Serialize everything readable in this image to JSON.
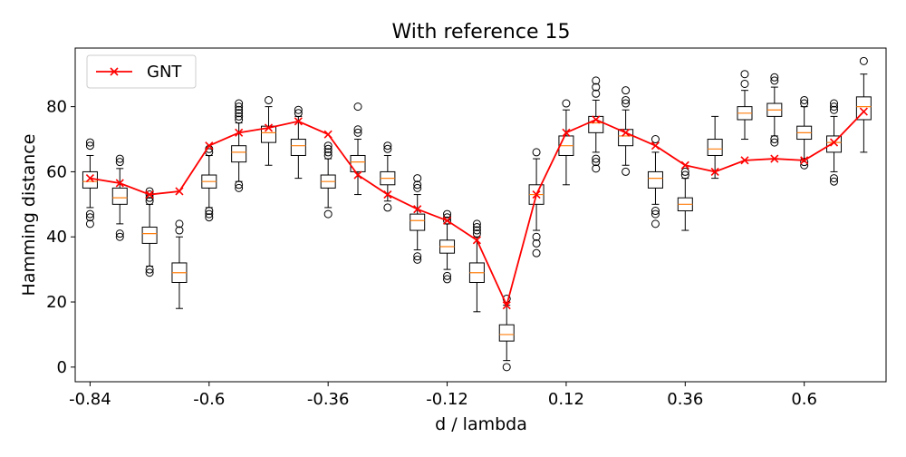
{
  "chart_data": {
    "type": "box",
    "title": "With reference 15",
    "xlabel": "d / lambda",
    "ylabel": "Hamming distance",
    "x_ticks": [
      "-0.84",
      "-0.6",
      "-0.36",
      "-0.12",
      "0.12",
      "0.36",
      "0.6"
    ],
    "x_tick_values": [
      -0.84,
      -0.6,
      -0.36,
      -0.12,
      0.12,
      0.36,
      0.6
    ],
    "y_ticks": [
      0,
      20,
      40,
      60,
      80
    ],
    "xlim": [
      -0.87,
      0.765
    ],
    "ylim": [
      -4.5,
      98
    ],
    "grid": false,
    "legend": {
      "position": "top-left",
      "entries": [
        {
          "label": "GNT",
          "color": "#ff0000",
          "marker": "x"
        }
      ]
    },
    "positions": [
      -0.84,
      -0.78,
      -0.72,
      -0.66,
      -0.6,
      -0.54,
      -0.48,
      -0.42,
      -0.36,
      -0.3,
      -0.24,
      -0.18,
      -0.12,
      -0.06,
      0.0,
      0.06,
      0.12,
      0.18,
      0.24,
      0.3,
      0.36,
      0.42,
      0.48,
      0.54,
      0.6,
      0.66,
      0.72
    ],
    "boxes": [
      {
        "min": 49,
        "q1": 55,
        "median": 57,
        "q3": 60,
        "max": 65,
        "outliers": [
          44,
          46,
          47,
          68,
          69
        ]
      },
      {
        "min": 44,
        "q1": 50,
        "median": 52,
        "q3": 55,
        "max": 61,
        "outliers": [
          40,
          41,
          63,
          64
        ]
      },
      {
        "min": 31,
        "q1": 38,
        "median": 41,
        "q3": 43,
        "max": 50,
        "outliers": [
          29,
          30,
          51,
          52,
          53,
          54
        ]
      },
      {
        "min": 18,
        "q1": 26,
        "median": 29,
        "q3": 32,
        "max": 40,
        "outliers": [
          42,
          44
        ]
      },
      {
        "min": 49,
        "q1": 55,
        "median": 57,
        "q3": 59,
        "max": 65,
        "outliers": [
          46,
          47,
          48,
          66,
          67
        ]
      },
      {
        "min": 57,
        "q1": 63,
        "median": 66,
        "q3": 68,
        "max": 75,
        "outliers": [
          55,
          56,
          76,
          77,
          78,
          79,
          80,
          81
        ]
      },
      {
        "min": 62,
        "q1": 69,
        "median": 72,
        "q3": 74,
        "max": 80,
        "outliers": [
          82
        ]
      },
      {
        "min": 58,
        "q1": 65,
        "median": 68,
        "q3": 70,
        "max": 77,
        "outliers": [
          78,
          79
        ]
      },
      {
        "min": 49,
        "q1": 55,
        "median": 57,
        "q3": 59,
        "max": 64,
        "outliers": [
          47,
          65,
          66,
          67,
          68
        ]
      },
      {
        "min": 53,
        "q1": 60,
        "median": 63,
        "q3": 65,
        "max": 70,
        "outliers": [
          72,
          73,
          80
        ]
      },
      {
        "min": 51,
        "q1": 56,
        "median": 58,
        "q3": 60,
        "max": 65,
        "outliers": [
          49,
          67,
          68
        ]
      },
      {
        "min": 36,
        "q1": 42,
        "median": 45,
        "q3": 47,
        "max": 53,
        "outliers": [
          33,
          34,
          55,
          56,
          58
        ]
      },
      {
        "min": 30,
        "q1": 35,
        "median": 37,
        "q3": 39,
        "max": 44,
        "outliers": [
          27,
          28,
          45,
          46,
          47
        ]
      },
      {
        "min": 17,
        "q1": 26,
        "median": 29,
        "q3": 32,
        "max": 40,
        "outliers": [
          41,
          42,
          43,
          44
        ]
      },
      {
        "min": 2,
        "q1": 8,
        "median": 10,
        "q3": 13,
        "max": 19,
        "outliers": [
          0,
          21
        ]
      },
      {
        "min": 42,
        "q1": 50,
        "median": 53,
        "q3": 56,
        "max": 64,
        "outliers": [
          35,
          38,
          40,
          66
        ]
      },
      {
        "min": 56,
        "q1": 65,
        "median": 68,
        "q3": 71,
        "max": 79,
        "outliers": [
          81
        ]
      },
      {
        "min": 66,
        "q1": 72,
        "median": 75,
        "q3": 77,
        "max": 82,
        "outliers": [
          61,
          63,
          64,
          84,
          86,
          88
        ]
      },
      {
        "min": 62,
        "q1": 68,
        "median": 71,
        "q3": 73,
        "max": 79,
        "outliers": [
          60,
          81,
          82,
          85
        ]
      },
      {
        "min": 50,
        "q1": 55,
        "median": 58,
        "q3": 60,
        "max": 66,
        "outliers": [
          44,
          47,
          48,
          70
        ]
      },
      {
        "min": 42,
        "q1": 48,
        "median": 50,
        "q3": 52,
        "max": 58,
        "outliers": [
          59,
          60
        ]
      },
      {
        "min": 58,
        "q1": 65,
        "median": 67,
        "q3": 70,
        "max": 77,
        "outliers": []
      },
      {
        "min": 70,
        "q1": 76,
        "median": 78,
        "q3": 80,
        "max": 85,
        "outliers": [
          87,
          90
        ]
      },
      {
        "min": 71,
        "q1": 77,
        "median": 79,
        "q3": 81,
        "max": 86,
        "outliers": [
          69,
          70,
          88,
          89
        ]
      },
      {
        "min": 64,
        "q1": 70,
        "median": 72,
        "q3": 74,
        "max": 80,
        "outliers": [
          62,
          63,
          81,
          82
        ]
      },
      {
        "min": 60,
        "q1": 66,
        "median": 69,
        "q3": 71,
        "max": 77,
        "outliers": [
          57,
          58,
          79,
          80,
          81
        ]
      },
      {
        "min": 66,
        "q1": 76,
        "median": 80,
        "q3": 83,
        "max": 90,
        "outliers": [
          94
        ]
      }
    ],
    "series": [
      {
        "name": "GNT",
        "color": "#ff0000",
        "marker": "x",
        "x": [
          -0.84,
          -0.78,
          -0.72,
          -0.66,
          -0.6,
          -0.54,
          -0.48,
          -0.42,
          -0.36,
          -0.3,
          -0.24,
          -0.18,
          -0.12,
          -0.06,
          0.0,
          0.06,
          0.12,
          0.18,
          0.24,
          0.3,
          0.36,
          0.42,
          0.48,
          0.54,
          0.6,
          0.66,
          0.72
        ],
        "y": [
          58,
          56.5,
          53,
          54,
          68,
          72,
          73.5,
          75.5,
          71.5,
          59,
          53,
          48.5,
          45,
          39,
          19,
          53,
          72,
          76,
          72,
          68,
          62,
          60,
          63.5,
          64,
          63.5,
          69,
          78.5
        ]
      }
    ],
    "colors": {
      "box": "#000000",
      "median": "#ff7f0e",
      "gnt": "#ff0000"
    }
  }
}
